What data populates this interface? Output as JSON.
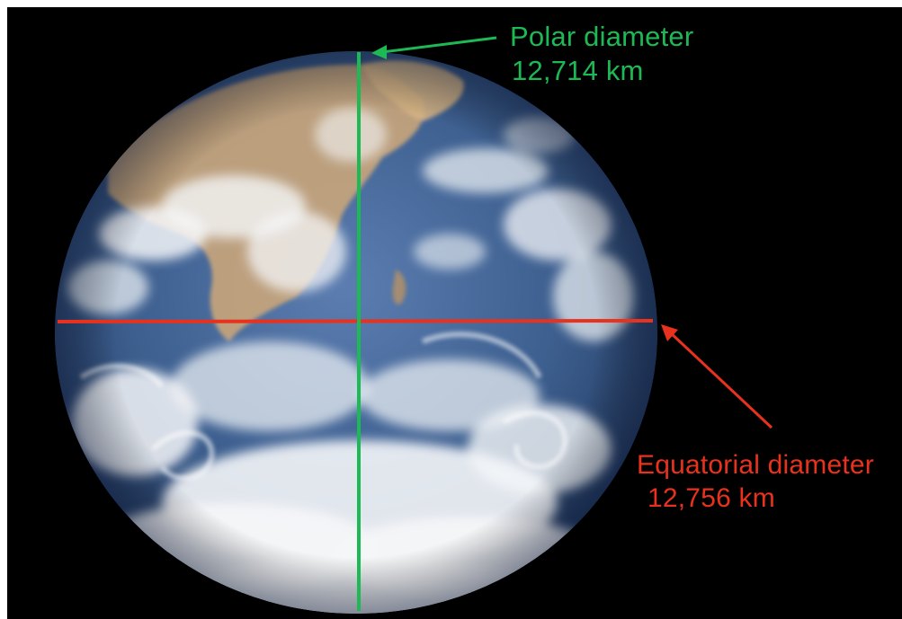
{
  "colors": {
    "background": "#000000",
    "polar": "#1db954",
    "equatorial": "#e8321e",
    "ocean": "#3d5f8f",
    "cloud": "#f4f6f8",
    "land": "#c9a57a"
  },
  "image": {
    "subject": "earth-globe-photo"
  },
  "polar": {
    "name": "Polar diameter",
    "value": "12,714 km"
  },
  "equatorial": {
    "name": "Equatorial diameter",
    "value": "12,756 km"
  }
}
